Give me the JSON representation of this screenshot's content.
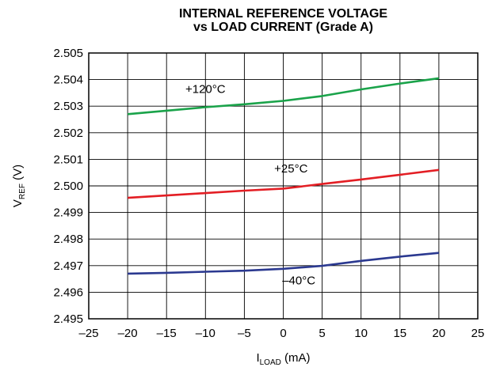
{
  "chart_data": {
    "type": "line",
    "title": [
      "INTERNAL REFERENCE VOLTAGE",
      "vs LOAD CURRENT (Grade A)"
    ],
    "xlabel": {
      "main": "I",
      "sub": "LOAD",
      "unit": " (mA)"
    },
    "ylabel": {
      "main": "V",
      "sub": "REF",
      "unit": " (V)"
    },
    "xlim": [
      -25,
      25
    ],
    "ylim": [
      2.495,
      2.505
    ],
    "xticks": [
      "–25",
      "–20",
      "–15",
      "–10",
      "–5",
      "0",
      "5",
      "10",
      "15",
      "20",
      "25"
    ],
    "yticks": [
      "2.495",
      "2.496",
      "2.497",
      "2.498",
      "2.499",
      "2.500",
      "2.501",
      "2.502",
      "2.503",
      "2.504",
      "2.505"
    ],
    "grid": true,
    "series": [
      {
        "name": "+120°C",
        "color": "#1aa34a",
        "x": [
          -20,
          -15,
          -10,
          -5,
          0,
          5,
          10,
          15,
          20
        ],
        "y": [
          2.5027,
          2.50283,
          2.50296,
          2.50307,
          2.5032,
          2.50338,
          2.50363,
          2.50385,
          2.50405
        ],
        "label_at": [
          -10,
          2.5035
        ]
      },
      {
        "name": "+25°C",
        "color": "#e31e24",
        "x": [
          -20,
          -15,
          -10,
          -5,
          0,
          5,
          10,
          15,
          20
        ],
        "y": [
          2.49955,
          2.49964,
          2.49973,
          2.49982,
          2.4999,
          2.50007,
          2.50024,
          2.50042,
          2.5006
        ],
        "label_at": [
          1,
          2.5005
        ]
      },
      {
        "name": "–40°C",
        "color": "#2b3990",
        "x": [
          -20,
          -15,
          -10,
          -5,
          0,
          5,
          10,
          15,
          20
        ],
        "y": [
          2.4967,
          2.49673,
          2.49677,
          2.49681,
          2.49688,
          2.49699,
          2.49718,
          2.49734,
          2.49748
        ],
        "label_at": [
          2,
          2.4963
        ]
      }
    ]
  }
}
